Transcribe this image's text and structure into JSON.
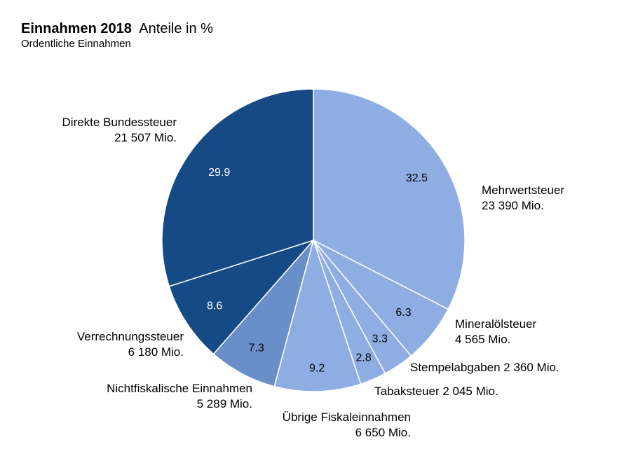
{
  "chart_data": {
    "type": "pie",
    "title_bold": "Einnahmen 2018",
    "title_rest": "Anteile in %",
    "subtitle": "Ordentliche Einnahmen",
    "slices": [
      {
        "name": "Mehrwertsteuer",
        "amount": "23 390 Mio.",
        "value": 32.5,
        "color": "#8eaee3",
        "value_label": "32.5"
      },
      {
        "name": "Mineralölsteuer",
        "amount": "4 565 Mio.",
        "value": 6.3,
        "color": "#8eaee3",
        "value_label": "6.3"
      },
      {
        "name": "Stempelabgaben",
        "amount": "2 360 Mio.",
        "value": 3.3,
        "color": "#8eaee3",
        "value_label": "3.3"
      },
      {
        "name": "Tabaksteuer",
        "amount": "2 045 Mio.",
        "value": 2.8,
        "color": "#8eaee3",
        "value_label": "2.8"
      },
      {
        "name": "Übrige Fiskaleinnahmen",
        "amount": "6 650 Mio.",
        "value": 9.2,
        "color": "#8eaee3",
        "value_label": "9.2"
      },
      {
        "name": "Nichtfiskalische  Einnahmen",
        "amount": "5 289 Mio.",
        "value": 7.3,
        "color": "#6a8ec8",
        "value_label": "7.3"
      },
      {
        "name": "Verrechnungssteuer",
        "amount": "6 180 Mio.",
        "value": 8.6,
        "color": "#164a84",
        "value_label": "8.6"
      },
      {
        "name": "Direkte Bundessteuer",
        "amount": "21 507 Mio.",
        "value": 29.9,
        "color": "#164a84",
        "value_label": "29.9"
      }
    ]
  }
}
